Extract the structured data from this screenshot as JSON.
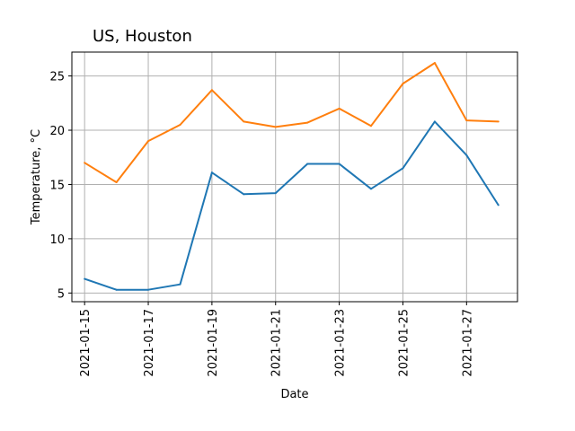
{
  "chart_data": {
    "type": "line",
    "title": "US, Houston",
    "xlabel": "Date",
    "ylabel": "Temperature, °C",
    "x": [
      "2021-01-15",
      "2021-01-16",
      "2021-01-17",
      "2021-01-18",
      "2021-01-19",
      "2021-01-20",
      "2021-01-21",
      "2021-01-22",
      "2021-01-23",
      "2021-01-24",
      "2021-01-25",
      "2021-01-26",
      "2021-01-27",
      "2021-01-28"
    ],
    "x_ticks": [
      "2021-01-15",
      "2021-01-17",
      "2021-01-19",
      "2021-01-21",
      "2021-01-23",
      "2021-01-25",
      "2021-01-27"
    ],
    "y_ticks": [
      5,
      10,
      15,
      20,
      25
    ],
    "ylim": [
      4.2,
      27.2
    ],
    "xlim": [
      "2021-01-14.6",
      "2021-01-28.6"
    ],
    "grid": true,
    "series": [
      {
        "color": "#1f77b4",
        "values": [
          6.3,
          5.3,
          5.3,
          5.8,
          16.1,
          14.1,
          14.2,
          16.9,
          16.9,
          14.6,
          16.5,
          20.8,
          17.7,
          13.1
        ]
      },
      {
        "color": "#ff7f0e",
        "values": [
          17.0,
          15.2,
          19.0,
          20.5,
          23.7,
          20.8,
          20.3,
          20.7,
          22.0,
          20.4,
          24.3,
          26.2,
          20.9,
          20.8
        ]
      }
    ]
  }
}
